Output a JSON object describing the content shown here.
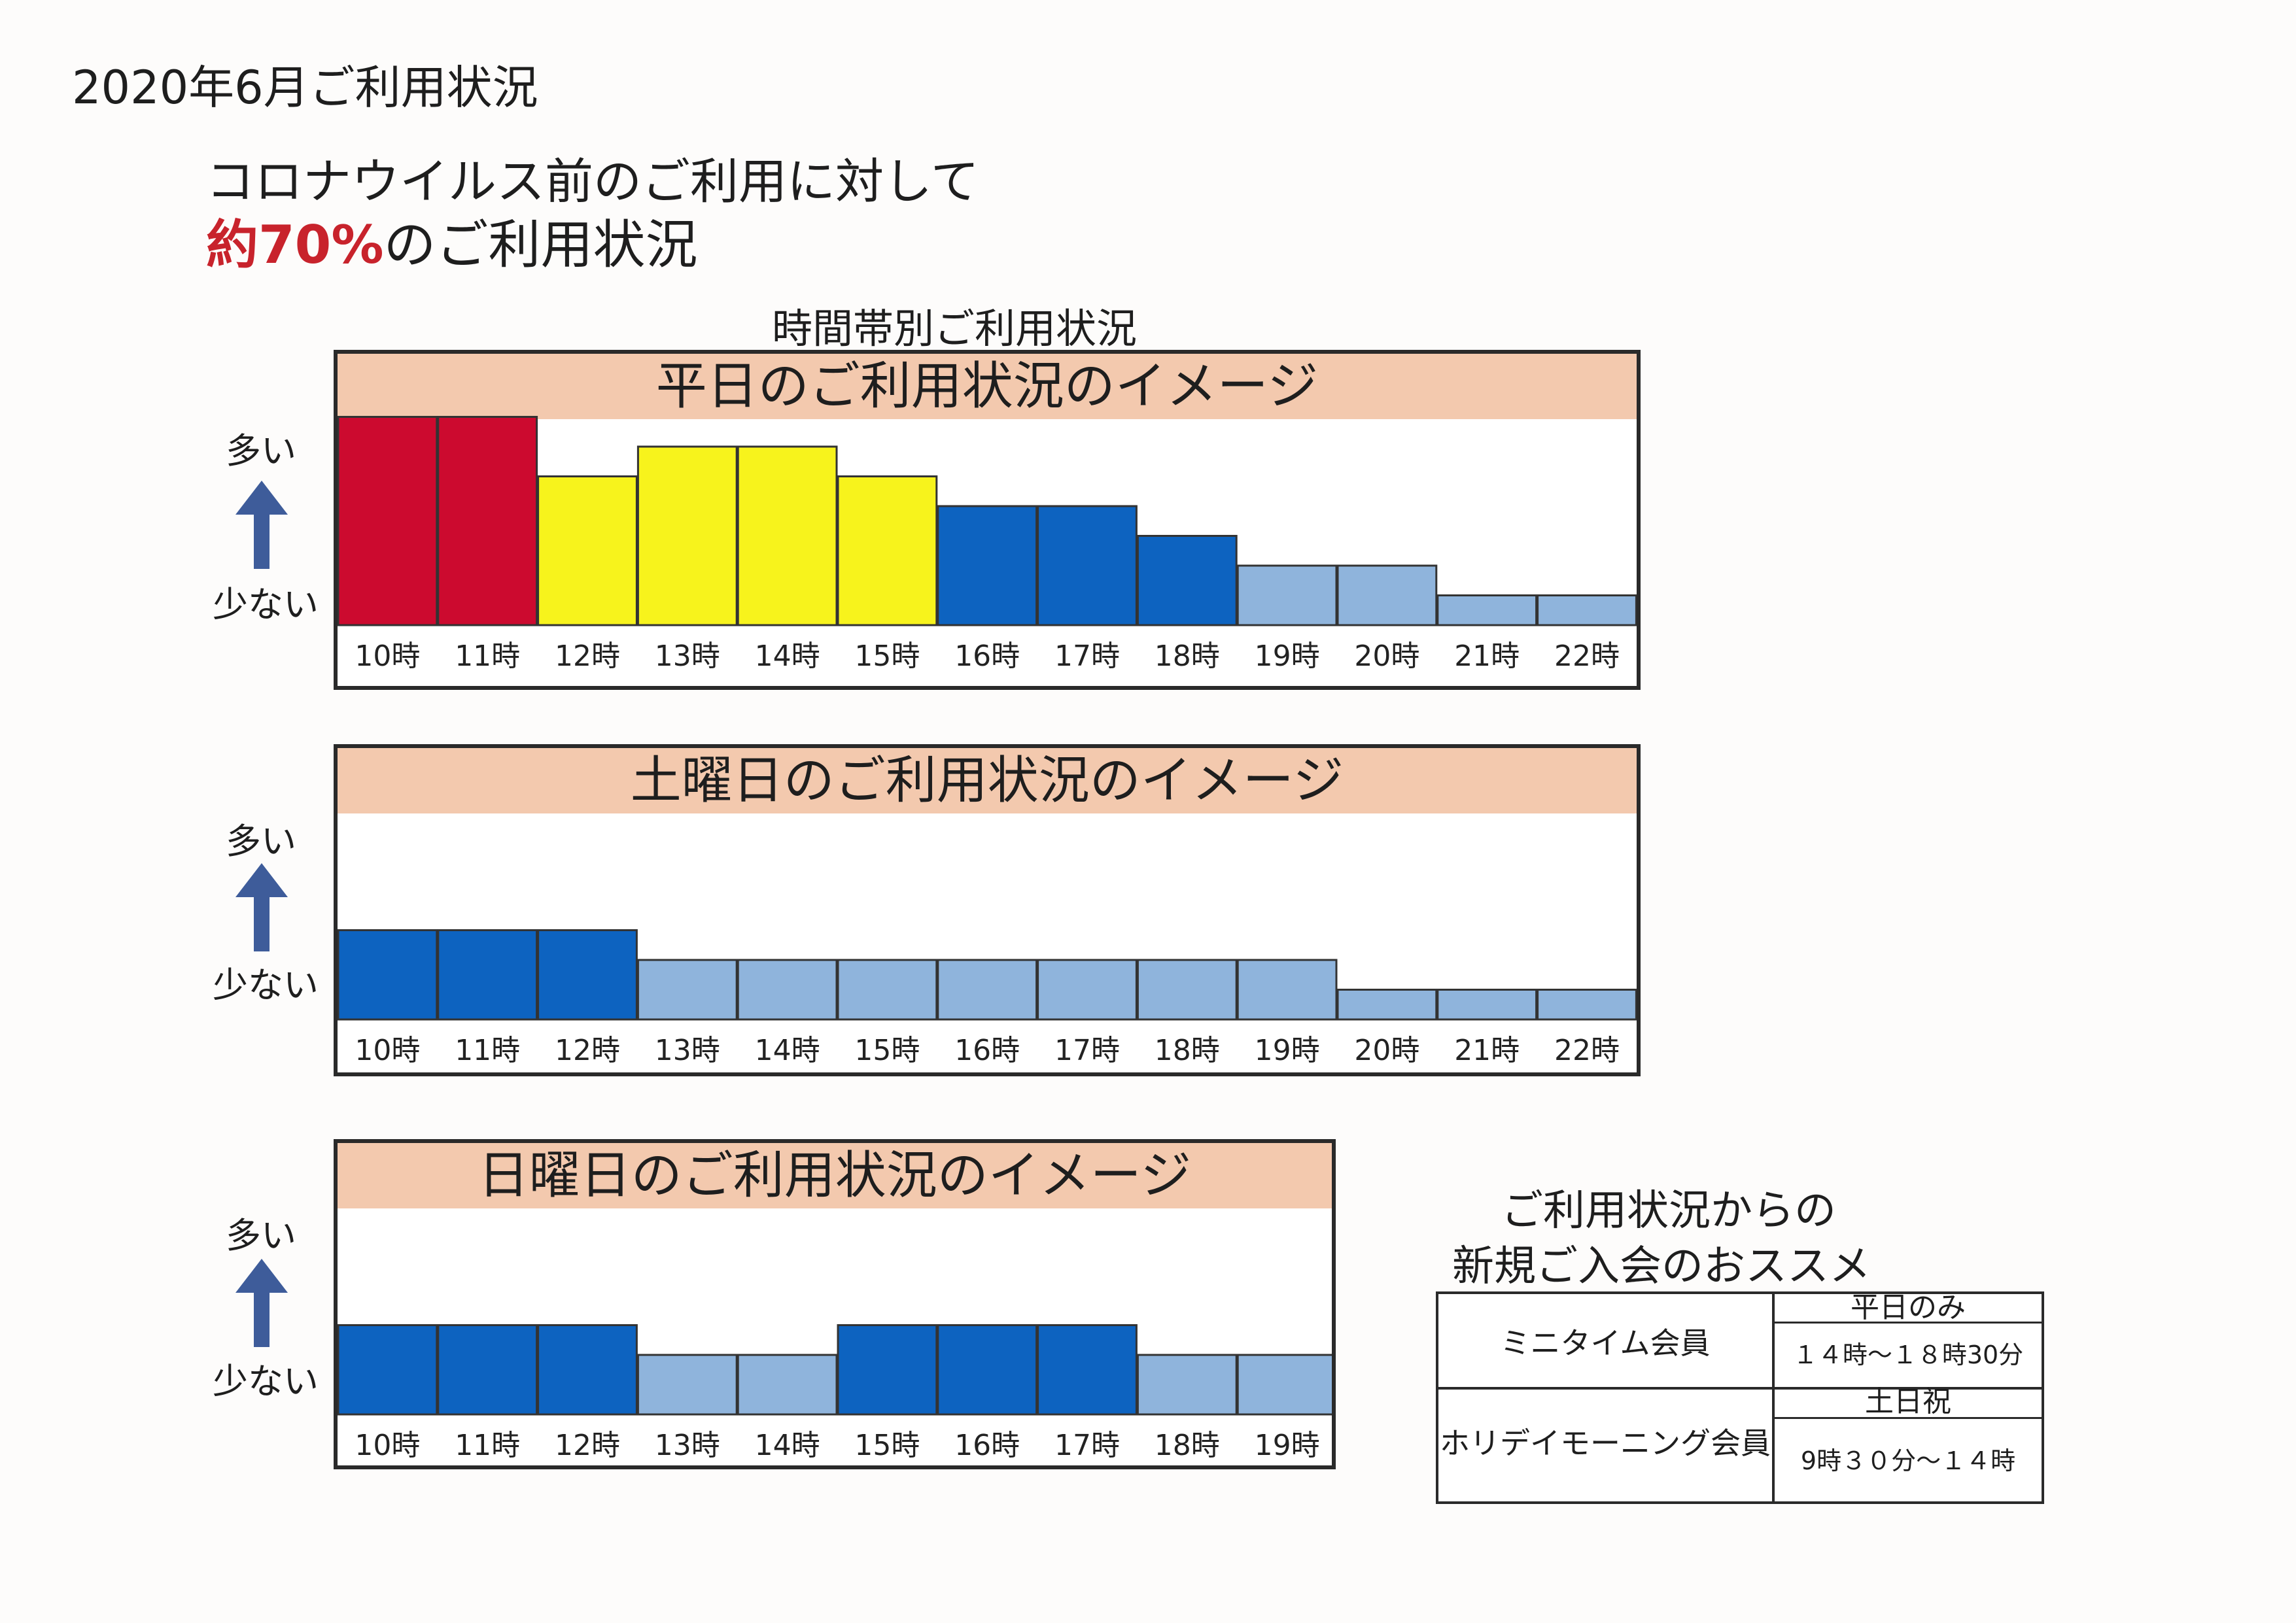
{
  "page_title": "2020年6月ご利用状況",
  "headline": {
    "line1": "コロナウイルス前のご利用に対して",
    "line2_highlight": "約70%",
    "line2_rest": "のご利用状況",
    "highlight_color": "#c8232c"
  },
  "chart_section_title": "時間帯別ご利用状況",
  "y_axis": {
    "high_label": "多い",
    "low_label": "少ない",
    "arrow_color": "#3e5c9a"
  },
  "colors": {
    "red": "#cc0a2f",
    "yellow": "#f7f31c",
    "blue": "#0d63c0",
    "lightblue": "#8fb4dc",
    "header_band": "#f3c9ae"
  },
  "chart_data": [
    {
      "type": "bar",
      "title": "平日のご利用状況のイメージ",
      "categories": [
        "10時",
        "11時",
        "12時",
        "13時",
        "14時",
        "15時",
        "16時",
        "17時",
        "18時",
        "19時",
        "20時",
        "21時",
        "22時"
      ],
      "values": [
        7,
        7,
        5,
        6,
        6,
        5,
        4,
        4,
        3,
        2,
        2,
        1,
        1
      ],
      "colors": [
        "red",
        "red",
        "yellow",
        "yellow",
        "yellow",
        "yellow",
        "blue",
        "blue",
        "blue",
        "lightblue",
        "lightblue",
        "lightblue",
        "lightblue"
      ],
      "ylim": [
        0,
        7
      ]
    },
    {
      "type": "bar",
      "title": "土曜日のご利用状況のイメージ",
      "categories": [
        "10時",
        "11時",
        "12時",
        "13時",
        "14時",
        "15時",
        "16時",
        "17時",
        "18時",
        "19時",
        "20時",
        "21時",
        "22時"
      ],
      "values": [
        3,
        3,
        3,
        2,
        2,
        2,
        2,
        2,
        2,
        2,
        1,
        1,
        1
      ],
      "colors": [
        "blue",
        "blue",
        "blue",
        "lightblue",
        "lightblue",
        "lightblue",
        "lightblue",
        "lightblue",
        "lightblue",
        "lightblue",
        "lightblue",
        "lightblue",
        "lightblue"
      ],
      "ylim": [
        0,
        7
      ]
    },
    {
      "type": "bar",
      "title": "日曜日のご利用状況のイメージ",
      "categories": [
        "10時",
        "11時",
        "12時",
        "13時",
        "14時",
        "15時",
        "16時",
        "17時",
        "18時",
        "19時"
      ],
      "values": [
        3,
        3,
        3,
        2,
        2,
        3,
        3,
        3,
        2,
        2
      ],
      "colors": [
        "blue",
        "blue",
        "blue",
        "lightblue",
        "lightblue",
        "blue",
        "blue",
        "blue",
        "lightblue",
        "lightblue"
      ],
      "ylim": [
        0,
        7
      ]
    }
  ],
  "recommendation": {
    "title_line1": "ご利用状況からの",
    "title_line2": "新規ご入会のおススメ",
    "plans": [
      {
        "name": "ミニタイム会員",
        "days": "平日のみ",
        "hours": "１４時～１８時30分"
      },
      {
        "name": "ホリデイモーニング会員",
        "days": "土日祝",
        "hours": "9時３０分～１４時"
      }
    ]
  }
}
